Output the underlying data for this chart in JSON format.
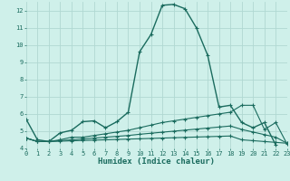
{
  "xlabel": "Humidex (Indice chaleur)",
  "xlim": [
    0,
    23
  ],
  "ylim": [
    4,
    12.5
  ],
  "yticks": [
    4,
    5,
    6,
    7,
    8,
    9,
    10,
    11,
    12
  ],
  "xticks": [
    0,
    1,
    2,
    3,
    4,
    5,
    6,
    7,
    8,
    9,
    10,
    11,
    12,
    13,
    14,
    15,
    16,
    17,
    18,
    19,
    20,
    21,
    22,
    23
  ],
  "background_color": "#cff0ea",
  "grid_color": "#b0d8d2",
  "line_color": "#1a6b5e",
  "line1_x": [
    0,
    1,
    2,
    3,
    4,
    5,
    6,
    7,
    8,
    9,
    10,
    11,
    12,
    13,
    14,
    15,
    16,
    17,
    18,
    19,
    20,
    21,
    22
  ],
  "line1_y": [
    5.7,
    4.5,
    4.4,
    4.9,
    5.05,
    5.55,
    5.6,
    5.2,
    5.55,
    6.1,
    9.6,
    10.6,
    12.3,
    12.35,
    12.1,
    11.0,
    9.4,
    6.4,
    6.5,
    5.5,
    5.2,
    5.5,
    4.2
  ],
  "line2_x": [
    0,
    1,
    2,
    3,
    4,
    5,
    6,
    7,
    8,
    9,
    10,
    11,
    12,
    13,
    14,
    15,
    16,
    17,
    18,
    19,
    20,
    21,
    22,
    23
  ],
  "line2_y": [
    4.6,
    4.4,
    4.4,
    4.5,
    4.65,
    4.65,
    4.75,
    4.85,
    4.95,
    5.05,
    5.2,
    5.35,
    5.5,
    5.6,
    5.7,
    5.8,
    5.9,
    6.0,
    6.1,
    6.5,
    6.5,
    5.1,
    5.5,
    4.25
  ],
  "line3_x": [
    0,
    1,
    2,
    3,
    4,
    5,
    6,
    7,
    8,
    9,
    10,
    11,
    12,
    13,
    14,
    15,
    16,
    17,
    18,
    19,
    20,
    21,
    22,
    23
  ],
  "line3_y": [
    4.6,
    4.4,
    4.4,
    4.45,
    4.5,
    4.55,
    4.6,
    4.65,
    4.7,
    4.75,
    4.82,
    4.88,
    4.94,
    5.0,
    5.06,
    5.12,
    5.18,
    5.24,
    5.3,
    5.1,
    4.95,
    4.8,
    4.65,
    4.3
  ],
  "line4_x": [
    0,
    1,
    2,
    3,
    4,
    5,
    6,
    7,
    8,
    9,
    10,
    11,
    12,
    13,
    14,
    15,
    16,
    17,
    18,
    19,
    20,
    21,
    22,
    23
  ],
  "line4_y": [
    4.6,
    4.4,
    4.4,
    4.42,
    4.44,
    4.46,
    4.48,
    4.5,
    4.52,
    4.54,
    4.56,
    4.58,
    4.6,
    4.62,
    4.64,
    4.66,
    4.68,
    4.7,
    4.72,
    4.5,
    4.45,
    4.4,
    4.35,
    4.3
  ]
}
